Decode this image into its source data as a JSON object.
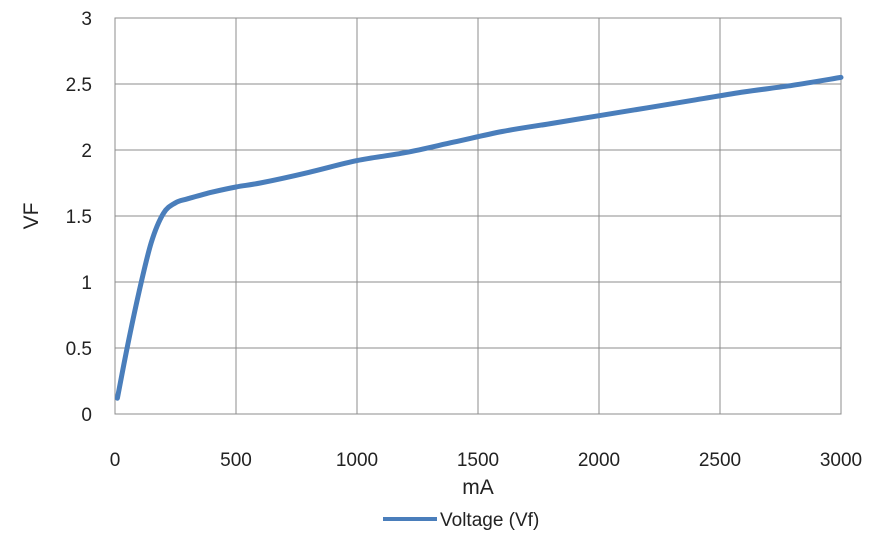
{
  "chart_data": {
    "type": "line",
    "title": "",
    "xlabel": "mA",
    "ylabel": "VF",
    "xlim": [
      0,
      3000
    ],
    "ylim": [
      0,
      3
    ],
    "x_ticks": [
      "0",
      "500",
      "1000",
      "1500",
      "2000",
      "2500",
      "3000"
    ],
    "y_ticks": [
      "0",
      "0.5",
      "1",
      "1.5",
      "2",
      "2.5",
      "3"
    ],
    "grid": true,
    "legend_position": "bottom",
    "series": [
      {
        "name": "Voltage (Vf)",
        "color": "#4a7ebb",
        "x": [
          10,
          50,
          100,
          150,
          200,
          250,
          300,
          400,
          500,
          600,
          800,
          1000,
          1200,
          1400,
          1600,
          1800,
          2000,
          2200,
          2400,
          2600,
          2800,
          3000
        ],
        "y": [
          0.12,
          0.5,
          0.93,
          1.3,
          1.52,
          1.6,
          1.63,
          1.68,
          1.72,
          1.75,
          1.83,
          1.92,
          1.98,
          2.06,
          2.14,
          2.2,
          2.26,
          2.32,
          2.38,
          2.44,
          2.49,
          2.55
        ]
      }
    ]
  }
}
